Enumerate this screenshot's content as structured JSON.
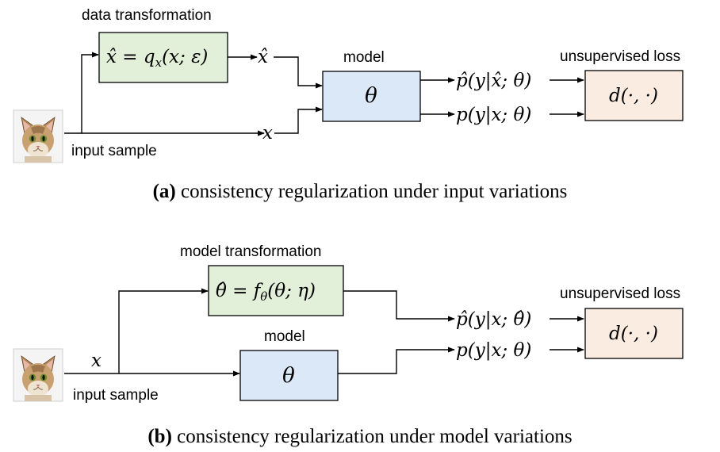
{
  "panel_a": {
    "data_transform_label": "data transformation",
    "data_transform_formula": "x̂ = q",
    "data_transform_sub": "x",
    "data_transform_args": "(x; ε)",
    "xhat": "x̂",
    "x": "x",
    "model_label": "model",
    "theta": "θ",
    "out1": "p̂(y|x̂; θ)",
    "out2": "p(y|x; θ)",
    "loss_label": "unsupervised loss",
    "loss": "d(·, ·)",
    "input_label": "input sample",
    "caption_bold": "(a)",
    "caption": " consistency regularization under input variations"
  },
  "panel_b": {
    "model_transform_label": "model transformation",
    "model_transform_formula": "θ̂ = f",
    "model_transform_sub": "θ",
    "model_transform_args": "(θ; η)",
    "x": "x",
    "model_label": "model",
    "theta": "θ",
    "out1": "p̂(y|x; θ̂)",
    "out2": "p(y|x; θ)",
    "loss_label": "unsupervised loss",
    "loss": "d(·, ·)",
    "input_label": "input sample",
    "caption_bold": "(b)",
    "caption": " consistency regularization under model variations"
  },
  "colors": {
    "transform_box": "#e2efd9",
    "model_box": "#dae8f7",
    "loss_box": "#fbece2"
  },
  "icons": {
    "input_image": "cat-photo-icon"
  }
}
